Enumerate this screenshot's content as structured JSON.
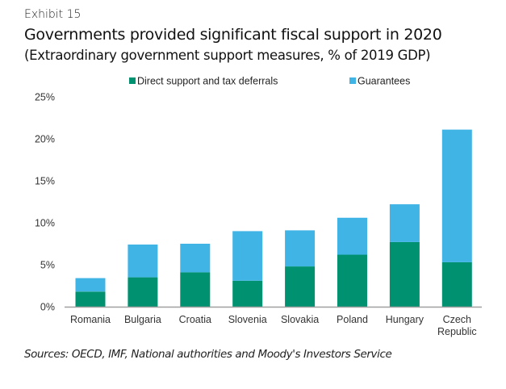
{
  "header": {
    "exhibit": "Exhibit 15",
    "title": "Governments provided significant fiscal support in 2020",
    "subtitle": "(Extraordinary government support measures, % of 2019 GDP)"
  },
  "footer": {
    "source": "Sources: OECD, IMF, National authorities and Moody's Investors Service"
  },
  "colors": {
    "direct": "#009270",
    "guarantees": "#41B4E6",
    "axis": "#a0a0a0"
  },
  "chart_data": {
    "type": "bar",
    "stacked": true,
    "title": "Governments provided significant fiscal support in 2020",
    "subtitle": "(Extraordinary government support measures, % of 2019 GDP)",
    "xlabel": "",
    "ylabel": "",
    "ylim": [
      0,
      25
    ],
    "yticks": [
      0,
      5,
      10,
      15,
      20,
      25
    ],
    "ytick_labels": [
      "0%",
      "5%",
      "10%",
      "15%",
      "20%",
      "25%"
    ],
    "grid": false,
    "legend_position": "top",
    "categories": [
      [
        "Romania"
      ],
      [
        "Bulgaria"
      ],
      [
        "Croatia"
      ],
      [
        "Slovenia"
      ],
      [
        "Slovakia"
      ],
      [
        "Poland"
      ],
      [
        "Hungary"
      ],
      [
        "Czech",
        "Republic"
      ]
    ],
    "category_names": [
      "Romania",
      "Bulgaria",
      "Croatia",
      "Slovenia",
      "Slovakia",
      "Poland",
      "Hungary",
      "Czech Republic"
    ],
    "series": [
      {
        "name": "Direct support and tax deferrals",
        "color": "#009270",
        "values": [
          1.8,
          3.5,
          4.1,
          3.1,
          4.8,
          6.2,
          7.7,
          5.3
        ]
      },
      {
        "name": "Guarantees",
        "color": "#41B4E6",
        "values": [
          1.6,
          3.9,
          3.4,
          5.9,
          4.3,
          4.4,
          4.5,
          15.8
        ]
      }
    ]
  }
}
